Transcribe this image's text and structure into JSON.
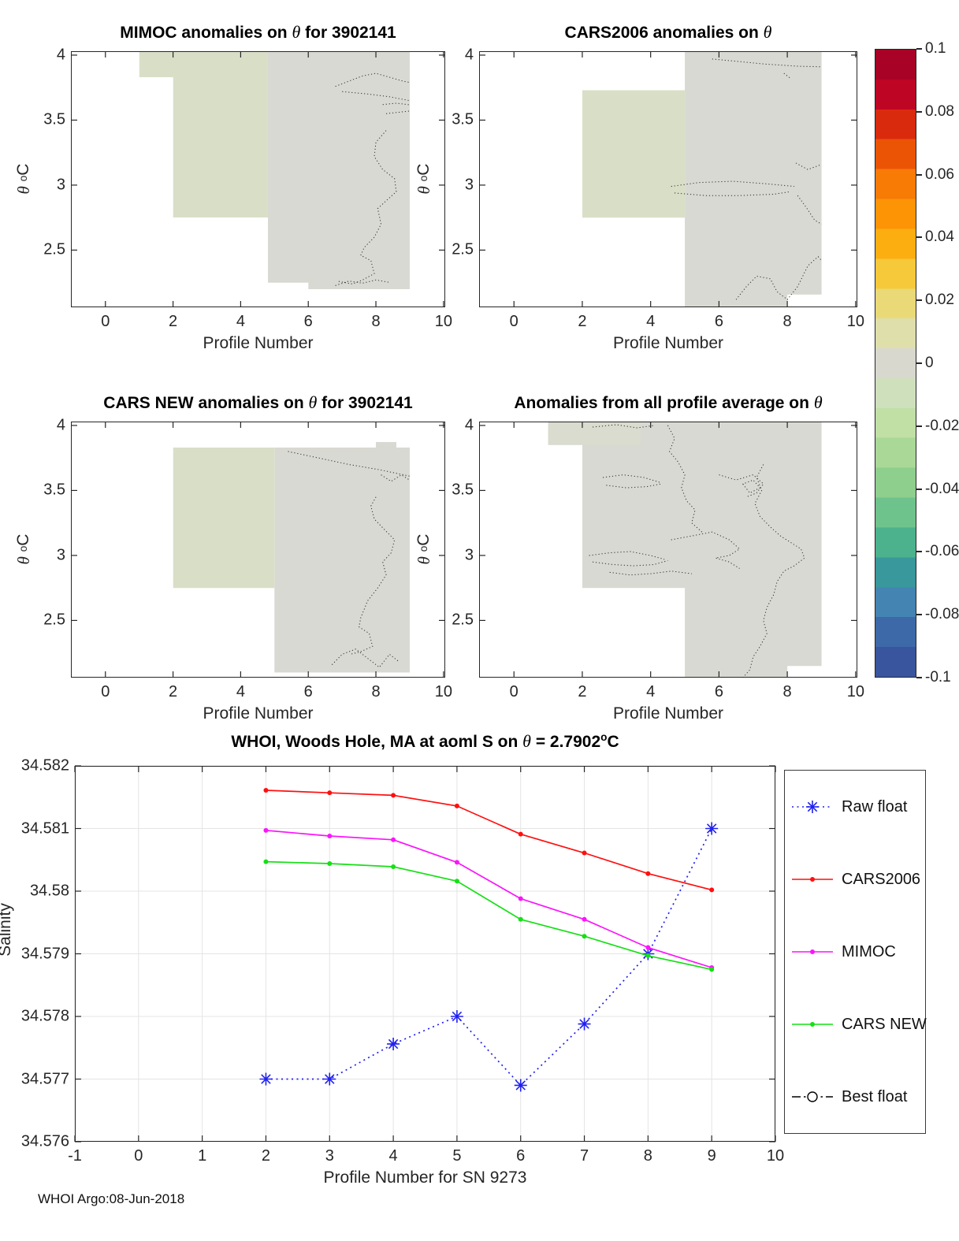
{
  "figure": {
    "footer": "WHOI Argo:08-Jun-2018",
    "field_green": "#d9dfc7",
    "field_gray": "#d9d9d3",
    "axis_color": "#262626",
    "grid_color": "#e4e4e4"
  },
  "titles": {
    "tl": {
      "pre": "MIMOC anomalies on ",
      "theta": "θ",
      "post": "  for 3902141"
    },
    "tr": {
      "pre": "CARS2006 anomalies on ",
      "theta": "θ",
      "post": ""
    },
    "ml": {
      "pre": "CARS NEW anomalies on ",
      "theta": "θ",
      "post": " for 3902141"
    },
    "mr": {
      "pre": "Anomalies from all profile average on ",
      "theta": "θ",
      "post": ""
    },
    "bottom": {
      "pre": "WHOI, Woods Hole, MA at aoml S on ",
      "theta": "θ",
      "mid": " = 2.7902",
      "sup": "o",
      "end": "C"
    }
  },
  "axes_labels": {
    "contour_xlabel": "Profile Number",
    "contour_ylabel": {
      "theta": "θ",
      "sup": "o",
      "unit": "C"
    },
    "bottom_xlabel": "Profile Number for SN 9273",
    "bottom_ylabel": "Salinity"
  },
  "colorbar": {
    "vmin": -0.1,
    "vmax": 0.1,
    "tick_values": [
      0.1,
      0.08,
      0.06,
      0.04,
      0.02,
      0,
      -0.02,
      -0.04,
      -0.06,
      -0.08,
      -0.1
    ],
    "tick_labels": [
      "0.1",
      "0.08",
      "0.06",
      "0.04",
      "0.02",
      "0",
      "-0.02",
      "-0.04",
      "-0.06",
      "-0.08",
      "-0.1"
    ],
    "stops_top_to_bottom": [
      "#a80326",
      "#bf0524",
      "#d92a0e",
      "#ec5405",
      "#f87b06",
      "#fc9405",
      "#fcae11",
      "#f5c93a",
      "#e9d977",
      "#dfdfab",
      "#d8d8cf",
      "#cfe0bd",
      "#c0e0a6",
      "#a9d897",
      "#8ecf8e",
      "#6ec38c",
      "#4bb28d",
      "#38989b",
      "#4484b2",
      "#3e69a9",
      "#39559e"
    ]
  },
  "chart_data": [
    {
      "type": "heatmap",
      "title": "MIMOC anomalies on θ  for 3902141",
      "xlabel": "Profile Number",
      "ylabel": "θ °C",
      "xlim": [
        -1.02,
        10.05
      ],
      "ylim": [
        2.06,
        4.03
      ],
      "xticks": {
        "values": [
          0,
          2,
          4,
          6,
          8,
          10
        ],
        "labels": [
          "0",
          "2",
          "4",
          "6",
          "8",
          "10"
        ]
      },
      "yticks": {
        "values": [
          4,
          3.5,
          3,
          2.5
        ],
        "labels": [
          "4",
          "3.5",
          "3",
          "2.5"
        ]
      },
      "note": "anomaly field values near 0 (light gray / pale green) over profiles 1-9, theta 2.2-4.0, dotted zero contours on right side"
    },
    {
      "type": "heatmap",
      "title": "CARS2006 anomalies on θ",
      "xlabel": "Profile Number",
      "ylabel": "θ °C",
      "xlim": [
        -1.02,
        10.05
      ],
      "ylim": [
        2.06,
        4.03
      ],
      "xticks": {
        "values": [
          0,
          2,
          4,
          6,
          8,
          10
        ],
        "labels": [
          "0",
          "2",
          "4",
          "6",
          "8",
          "10"
        ]
      },
      "yticks": {
        "values": [
          4,
          3.5,
          3,
          2.5
        ],
        "labels": [
          "4",
          "3.5",
          "3",
          "2.5"
        ]
      },
      "note": "anomaly field values near 0; pale green block profiles 2-5 theta 2.75-3.73, gray block profiles 5-9, dotted zero contours near theta 3 and bottom right"
    },
    {
      "type": "heatmap",
      "title": "CARS NEW anomalies on θ for 3902141",
      "xlabel": "Profile Number",
      "ylabel": "θ °C",
      "xlim": [
        -1.02,
        10.05
      ],
      "ylim": [
        2.06,
        4.03
      ],
      "xticks": {
        "values": [
          0,
          2,
          4,
          6,
          8,
          10
        ],
        "labels": [
          "0",
          "2",
          "4",
          "6",
          "8",
          "10"
        ]
      },
      "yticks": {
        "values": [
          4,
          3.5,
          3,
          2.5
        ],
        "labels": [
          "4",
          "3.5",
          "3",
          "2.5"
        ]
      },
      "note": "anomaly field values near 0; pale green block profiles 2-5, gray block profiles 5-9 below theta 3.83, dotted zero contours on right side"
    },
    {
      "type": "heatmap",
      "title": "Anomalies from all profile average on θ",
      "xlabel": "Profile Number",
      "ylabel": "θ °C",
      "xlim": [
        -1.02,
        10.05
      ],
      "ylim": [
        2.06,
        4.03
      ],
      "xticks": {
        "values": [
          0,
          2,
          4,
          6,
          8,
          10
        ],
        "labels": [
          "0",
          "2",
          "4",
          "6",
          "8",
          "10"
        ]
      },
      "yticks": {
        "values": [
          4,
          3.5,
          3,
          2.5
        ],
        "labels": [
          "4",
          "3.5",
          "3",
          "2.5"
        ]
      },
      "note": "anomaly field values near 0; gray field profiles 1-9 with many meandering dotted zero contours throughout"
    },
    {
      "type": "line",
      "title": "WHOI, Woods Hole, MA at aoml S on θ = 2.7902°C",
      "xlabel": "Profile Number for SN 9273",
      "ylabel": "Salinity",
      "xlim": [
        -1,
        10
      ],
      "ylim": [
        34.576,
        34.582
      ],
      "grid": true,
      "legend_position": "right-outside",
      "xticks": {
        "values": [
          -1,
          0,
          1,
          2,
          3,
          4,
          5,
          6,
          7,
          8,
          9,
          10
        ],
        "labels": [
          "-1",
          "0",
          "1",
          "2",
          "3",
          "4",
          "5",
          "6",
          "7",
          "8",
          "9",
          "10"
        ]
      },
      "yticks": {
        "values": [
          34.582,
          34.581,
          34.58,
          34.579,
          34.578,
          34.577,
          34.576
        ],
        "labels": [
          "34.582",
          "34.581",
          "34.58",
          "34.579",
          "34.578",
          "34.577",
          "34.576"
        ]
      },
      "series": [
        {
          "name": "Raw float",
          "color": "#2020f0",
          "style": "dotted",
          "marker": "asterisk",
          "x": [
            2,
            3,
            4,
            5,
            6,
            7,
            8,
            9
          ],
          "y": [
            34.577,
            34.577,
            34.57756,
            34.578,
            34.5769,
            34.57788,
            34.579,
            34.581
          ]
        },
        {
          "name": "CARS2006",
          "color": "#ff0f0f",
          "style": "solid",
          "marker": "dot",
          "x": [
            2,
            3,
            4,
            5,
            6,
            7,
            8,
            9
          ],
          "y": [
            34.58161,
            34.58157,
            34.58153,
            34.58136,
            34.58091,
            34.58061,
            34.58028,
            34.58002
          ]
        },
        {
          "name": "MIMOC",
          "color": "#fb14fb",
          "style": "solid",
          "marker": "dot",
          "x": [
            2,
            3,
            4,
            5,
            6,
            7,
            8,
            9
          ],
          "y": [
            34.58097,
            34.58088,
            34.58082,
            34.58046,
            34.57988,
            34.57955,
            34.5791,
            34.57878
          ]
        },
        {
          "name": "CARS NEW",
          "color": "#16df16",
          "style": "solid",
          "marker": "dot",
          "x": [
            2,
            3,
            4,
            5,
            6,
            7,
            8,
            9
          ],
          "y": [
            34.58047,
            34.58044,
            34.58039,
            34.58016,
            34.57955,
            34.57928,
            34.57897,
            34.57875
          ]
        },
        {
          "name": "Best float",
          "color": "#000000",
          "style": "dashdot",
          "marker": "circle",
          "x": [],
          "y": []
        }
      ]
    }
  ]
}
